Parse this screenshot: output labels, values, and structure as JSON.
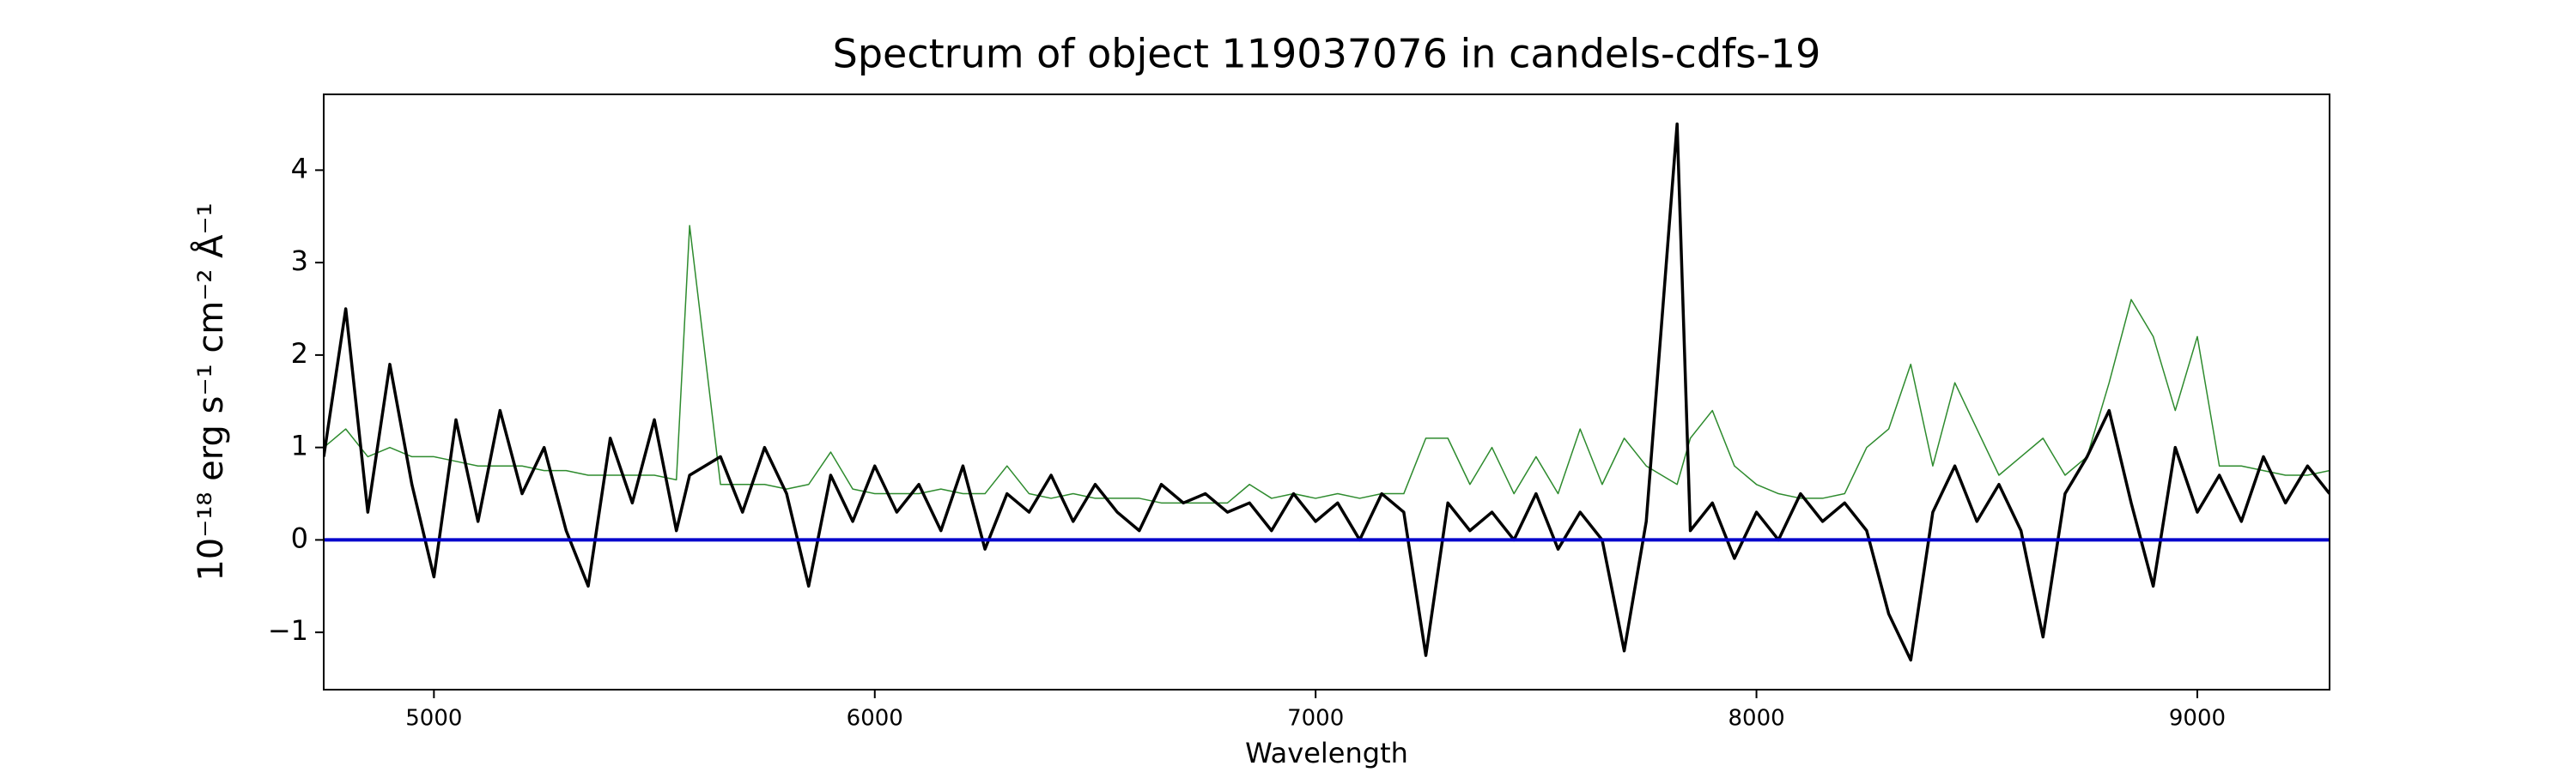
{
  "chart_data": {
    "type": "line",
    "title": "Spectrum of object 119037076 in candels-cdfs-19",
    "x_label": "Wavelength",
    "y_label": "10⁻¹⁸ erg s⁻¹ cm⁻² Å⁻¹",
    "x": [
      4750,
      4800,
      4850,
      4900,
      4950,
      5000,
      5050,
      5100,
      5150,
      5200,
      5250,
      5300,
      5350,
      5400,
      5450,
      5500,
      5550,
      5580,
      5650,
      5700,
      5750,
      5800,
      5850,
      5900,
      5950,
      6000,
      6050,
      6100,
      6150,
      6200,
      6250,
      6300,
      6350,
      6400,
      6450,
      6500,
      6550,
      6600,
      6650,
      6700,
      6750,
      6800,
      6850,
      6900,
      6950,
      7000,
      7050,
      7100,
      7150,
      7200,
      7250,
      7300,
      7350,
      7400,
      7450,
      7500,
      7550,
      7600,
      7650,
      7700,
      7750,
      7820,
      7850,
      7900,
      7950,
      8000,
      8050,
      8100,
      8150,
      8200,
      8250,
      8300,
      8350,
      8400,
      8450,
      8500,
      8550,
      8600,
      8650,
      8700,
      8750,
      8800,
      8850,
      8900,
      8950,
      9000,
      9050,
      9100,
      9150,
      9200,
      9250,
      9300
    ],
    "series": [
      {
        "color": "#2e8b2e",
        "width": 1.5,
        "values": [
          1.0,
          1.2,
          0.9,
          1.0,
          0.9,
          0.9,
          0.85,
          0.8,
          0.8,
          0.8,
          0.75,
          0.75,
          0.7,
          0.7,
          0.7,
          0.7,
          0.65,
          3.4,
          0.6,
          0.6,
          0.6,
          0.55,
          0.6,
          0.95,
          0.55,
          0.5,
          0.5,
          0.5,
          0.55,
          0.5,
          0.5,
          0.8,
          0.5,
          0.45,
          0.5,
          0.45,
          0.45,
          0.45,
          0.4,
          0.4,
          0.4,
          0.4,
          0.6,
          0.45,
          0.5,
          0.45,
          0.5,
          0.45,
          0.5,
          0.5,
          1.1,
          1.1,
          0.6,
          1.0,
          0.5,
          0.9,
          0.5,
          1.2,
          0.6,
          1.1,
          0.8,
          0.6,
          1.1,
          1.4,
          0.8,
          0.6,
          0.5,
          0.45,
          0.45,
          0.5,
          1.0,
          1.2,
          1.9,
          0.8,
          1.7,
          1.2,
          0.7,
          0.9,
          1.1,
          0.7,
          0.9,
          1.7,
          2.6,
          2.2,
          1.4,
          2.2,
          0.8,
          0.8,
          0.75,
          0.7,
          0.7,
          0.75
        ]
      },
      {
        "color": "#000000",
        "width": 3.5,
        "values": [
          0.9,
          2.5,
          0.3,
          1.9,
          0.6,
          -0.4,
          1.3,
          0.2,
          1.4,
          0.5,
          1.0,
          0.1,
          -0.5,
          1.1,
          0.4,
          1.3,
          0.1,
          0.7,
          0.9,
          0.3,
          1.0,
          0.5,
          -0.5,
          0.7,
          0.2,
          0.8,
          0.3,
          0.6,
          0.1,
          0.8,
          -0.1,
          0.5,
          0.3,
          0.7,
          0.2,
          0.6,
          0.3,
          0.1,
          0.6,
          0.4,
          0.5,
          0.3,
          0.4,
          0.1,
          0.5,
          0.2,
          0.4,
          0.0,
          0.5,
          0.3,
          -1.25,
          0.4,
          0.1,
          0.3,
          0.0,
          0.5,
          -0.1,
          0.3,
          0.0,
          -1.2,
          0.2,
          4.5,
          0.1,
          0.4,
          -0.2,
          0.3,
          0.0,
          0.5,
          0.2,
          0.4,
          0.1,
          -0.8,
          -1.3,
          0.3,
          0.8,
          0.2,
          0.6,
          0.1,
          -1.05,
          0.5,
          0.9,
          1.4,
          0.4,
          -0.5,
          1.0,
          0.3,
          0.7,
          0.2,
          0.9,
          0.4,
          0.8,
          0.5
        ]
      },
      {
        "color": "#0000cc",
        "width": 4,
        "x": [
          4750,
          9300
        ],
        "values": [
          0,
          0
        ]
      }
    ],
    "xlim": [
      4750,
      9300
    ],
    "ylim": [
      -1.62,
      4.82
    ],
    "xticks": [
      5000,
      6000,
      7000,
      8000,
      9000
    ],
    "yticks": [
      {
        "value": -1,
        "label": "−1"
      },
      0,
      1,
      2,
      3,
      4
    ]
  }
}
